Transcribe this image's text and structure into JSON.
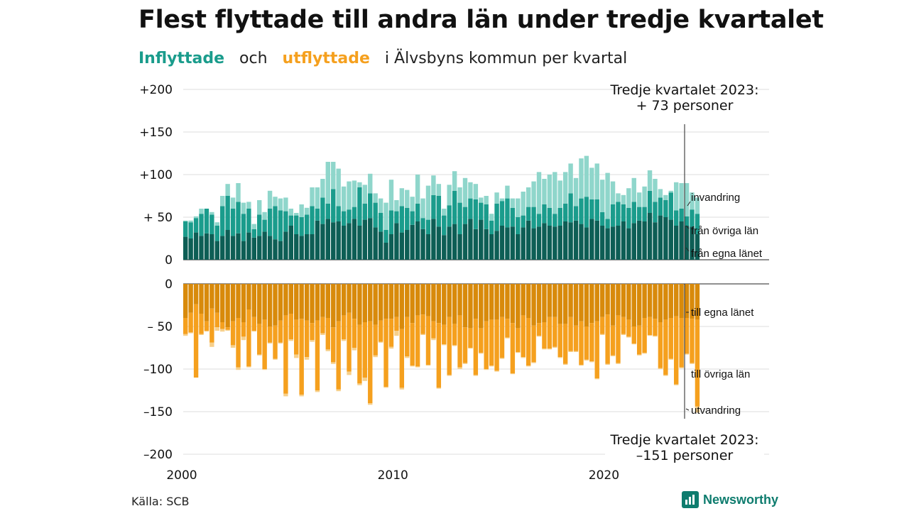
{
  "title": "Flest flyttade till andra län under tredje kvartalet",
  "subtitle": {
    "in_word": "Inflyttade",
    "and_word": "och",
    "out_word": "utflyttade",
    "rest": "i Älvsbyns  kommun  per  kvartal"
  },
  "source": "Källa: SCB",
  "logo_text": "Newsworthy",
  "annotation_top": [
    "Tredje kvartalet 2023:",
    "+ 73 personer"
  ],
  "annotation_bottom": [
    "Tredje kvartalet 2023:",
    "–151 personer"
  ],
  "chart_data": {
    "type": "bar",
    "stacked": true,
    "diverging": true,
    "x_ticks": [
      "2000",
      "2010",
      "2020"
    ],
    "y_ticks_in": [
      "+200",
      "+150",
      "+100",
      "+ 50",
      "0"
    ],
    "y_ticks_out": [
      "0",
      "– 50",
      "–100",
      "–150",
      "–200"
    ],
    "ylim_in": [
      0,
      200
    ],
    "ylim_out": [
      -200,
      0
    ],
    "x_start": "2000 Q1",
    "x_end": "2023 Q3",
    "grid": true,
    "colors": {
      "in_own": "#0d5e55",
      "in_other": "#1a9c8c",
      "in_imm": "#8fd6cb",
      "out_own": "#d88a0b",
      "out_other": "#f5a01e",
      "out_emi": "#f7d08b"
    },
    "inflow_series": [
      {
        "name": "från egna länet",
        "values": [
          27,
          25,
          32,
          28,
          31,
          30,
          22,
          28,
          35,
          28,
          31,
          22,
          32,
          26,
          28,
          33,
          28,
          24,
          22,
          33,
          40,
          30,
          28,
          30,
          30,
          46,
          42,
          48,
          44,
          45,
          40,
          43,
          48,
          40,
          47,
          49,
          38,
          33,
          20,
          30,
          43,
          32,
          35,
          41,
          45,
          36,
          30,
          48,
          39,
          29,
          39,
          42,
          30,
          42,
          48,
          36,
          47,
          36,
          30,
          34,
          40,
          38,
          39,
          30,
          38,
          46,
          37,
          39,
          43,
          40,
          39,
          40,
          45,
          44,
          46,
          42,
          38,
          48,
          46,
          40,
          37,
          39,
          40,
          45,
          37,
          43,
          46,
          45,
          55,
          44,
          52,
          50,
          47,
          40,
          45,
          40,
          39,
          30
        ]
      },
      {
        "name": "från övriga län",
        "values": [
          18,
          19,
          17,
          26,
          29,
          23,
          18,
          35,
          40,
          32,
          37,
          32,
          28,
          10,
          25,
          14,
          32,
          39,
          36,
          24,
          12,
          22,
          22,
          23,
          33,
          14,
          31,
          18,
          39,
          18,
          17,
          16,
          14,
          45,
          19,
          29,
          29,
          22,
          15,
          28,
          14,
          31,
          26,
          16,
          21,
          13,
          17,
          28,
          36,
          23,
          25,
          39,
          37,
          20,
          24,
          35,
          20,
          29,
          16,
          32,
          29,
          34,
          22,
          20,
          14,
          16,
          25,
          15,
          22,
          21,
          15,
          21,
          21,
          34,
          17,
          30,
          36,
          23,
          25,
          16,
          11,
          26,
          28,
          20,
          24,
          25,
          16,
          17,
          26,
          24,
          21,
          20,
          32,
          18,
          15,
          11,
          20,
          24
        ]
      },
      {
        "name": "invandring",
        "values": [
          1,
          2,
          2,
          6,
          0,
          3,
          4,
          12,
          14,
          13,
          22,
          13,
          8,
          6,
          17,
          9,
          21,
          11,
          14,
          16,
          8,
          3,
          15,
          8,
          22,
          25,
          22,
          49,
          32,
          44,
          29,
          33,
          31,
          6,
          22,
          23,
          11,
          17,
          32,
          36,
          13,
          21,
          21,
          17,
          34,
          23,
          40,
          23,
          14,
          8,
          24,
          23,
          18,
          34,
          19,
          18,
          6,
          10,
          8,
          13,
          3,
          15,
          11,
          22,
          28,
          23,
          30,
          49,
          30,
          39,
          49,
          32,
          37,
          35,
          33,
          47,
          48,
          37,
          42,
          38,
          54,
          27,
          10,
          11,
          23,
          28,
          17,
          24,
          24,
          27,
          10,
          6,
          2,
          33,
          30,
          39,
          20,
          19
        ]
      }
    ],
    "outflow_series": [
      {
        "name": "till egna länet",
        "values": [
          -40,
          -34,
          -24,
          -35,
          -44,
          -29,
          -34,
          -45,
          -51,
          -44,
          -40,
          -45,
          -30,
          -39,
          -47,
          -42,
          -50,
          -49,
          -43,
          -37,
          -35,
          -42,
          -41,
          -43,
          -46,
          -43,
          -39,
          -40,
          -51,
          -44,
          -37,
          -34,
          -41,
          -48,
          -45,
          -44,
          -48,
          -43,
          -41,
          -41,
          -39,
          -53,
          -39,
          -46,
          -37,
          -36,
          -38,
          -44,
          -46,
          -48,
          -39,
          -47,
          -37,
          -51,
          -52,
          -41,
          -52,
          -44,
          -42,
          -42,
          -39,
          -41,
          -46,
          -52,
          -37,
          -40,
          -49,
          -46,
          -45,
          -39,
          -39,
          -47,
          -47,
          -39,
          -49,
          -44,
          -50,
          -46,
          -44,
          -39,
          -36,
          -49,
          -37,
          -39,
          -42,
          -50,
          -49,
          -40,
          -39,
          -41,
          -45,
          -42,
          -40,
          -38,
          -40,
          -40,
          -41,
          -42
        ]
      },
      {
        "name": "till övriga län",
        "values": [
          -19,
          -23,
          -86,
          -24,
          -11,
          -40,
          -17,
          -8,
          -3,
          -28,
          -58,
          -17,
          -67,
          -16,
          -36,
          -58,
          -19,
          -39,
          -26,
          -92,
          -30,
          -41,
          -89,
          -43,
          -20,
          -82,
          -19,
          -37,
          -41,
          -80,
          -28,
          -69,
          -34,
          -69,
          -65,
          -96,
          -36,
          -25,
          -80,
          -33,
          -16,
          -69,
          -46,
          -50,
          -60,
          -23,
          -57,
          -20,
          -76,
          -23,
          -68,
          -25,
          -61,
          -42,
          -23,
          -66,
          -29,
          -56,
          -54,
          -60,
          -48,
          -22,
          -59,
          -28,
          -49,
          -56,
          -43,
          -15,
          -31,
          -37,
          -35,
          -39,
          -47,
          -40,
          -30,
          -51,
          -39,
          -45,
          -67,
          -20,
          -58,
          -35,
          -56,
          -20,
          -20,
          -20,
          -34,
          -41,
          -21,
          -20,
          -54,
          -65,
          -48,
          -80,
          -58,
          -42,
          -52,
          -102
        ]
      },
      {
        "name": "utvandring",
        "values": [
          -2,
          -1,
          0,
          -1,
          -1,
          -5,
          -4,
          -3,
          -1,
          -3,
          -3,
          -4,
          -1,
          -1,
          -1,
          -1,
          -1,
          -1,
          -1,
          -3,
          -2,
          -4,
          -2,
          -3,
          -2,
          -2,
          -2,
          -2,
          -2,
          -2,
          -2,
          -4,
          -3,
          -2,
          -4,
          -2,
          -2,
          -1,
          -1,
          -2,
          -6,
          -2,
          -2,
          -1,
          -1,
          -1,
          -1,
          -2,
          -1,
          -1,
          -1,
          -1,
          -2,
          -1,
          -1,
          -1,
          -1,
          -1,
          -1,
          -1,
          -1,
          -1,
          -1,
          -1,
          -1,
          -1,
          -1,
          -1,
          -1,
          -1,
          -1,
          -1,
          -1,
          -1,
          -1,
          -1,
          -1,
          -1,
          -1,
          -1,
          -1,
          -1,
          -1,
          -1,
          -1,
          -1,
          -1,
          -1,
          -1,
          -1,
          -1,
          -1,
          -1,
          -1,
          -1,
          -1,
          -1,
          -7
        ]
      }
    ]
  }
}
